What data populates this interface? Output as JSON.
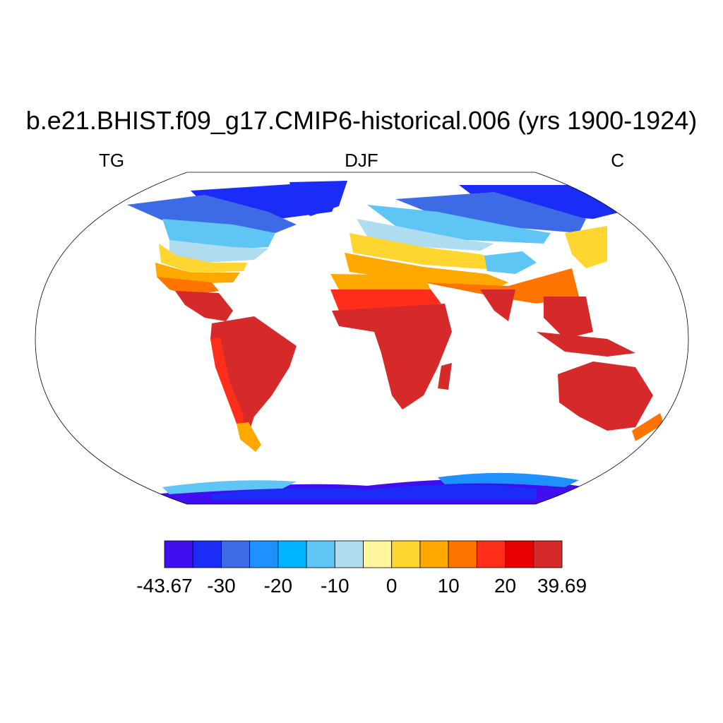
{
  "title": "b.e21.BHIST.f09_g17.CMIP6-historical.006 (yrs 1900-1924)",
  "left_label": "TG",
  "center_label": "DJF",
  "right_label": "C",
  "colorbar": {
    "colors": [
      "#3f0ff0",
      "#1a2cf5",
      "#3d6be6",
      "#1e90ff",
      "#00b3ff",
      "#5fc5f5",
      "#b0dcf0",
      "#fff59d",
      "#ffd630",
      "#ffa800",
      "#ff7300",
      "#ff2e1a",
      "#e60000",
      "#d62a2a"
    ],
    "labels": [
      "-43.67",
      "-30",
      "-20",
      "-10",
      "0",
      "10",
      "20",
      "39.69"
    ],
    "label_positions": [
      0,
      2,
      4,
      6,
      8,
      10,
      12,
      14
    ]
  },
  "chart_data": {
    "type": "heatmap",
    "title": "b.e21.BHIST.f09_g17.CMIP6-historical.006 (yrs 1900-1924)",
    "variable": "TG",
    "season": "DJF",
    "units": "C",
    "range": [
      -43.67,
      39.69
    ],
    "contour_levels": [
      -43.67,
      -35,
      -30,
      -25,
      -20,
      -15,
      -10,
      -5,
      0,
      5,
      10,
      15,
      20,
      25,
      39.69
    ]
  }
}
